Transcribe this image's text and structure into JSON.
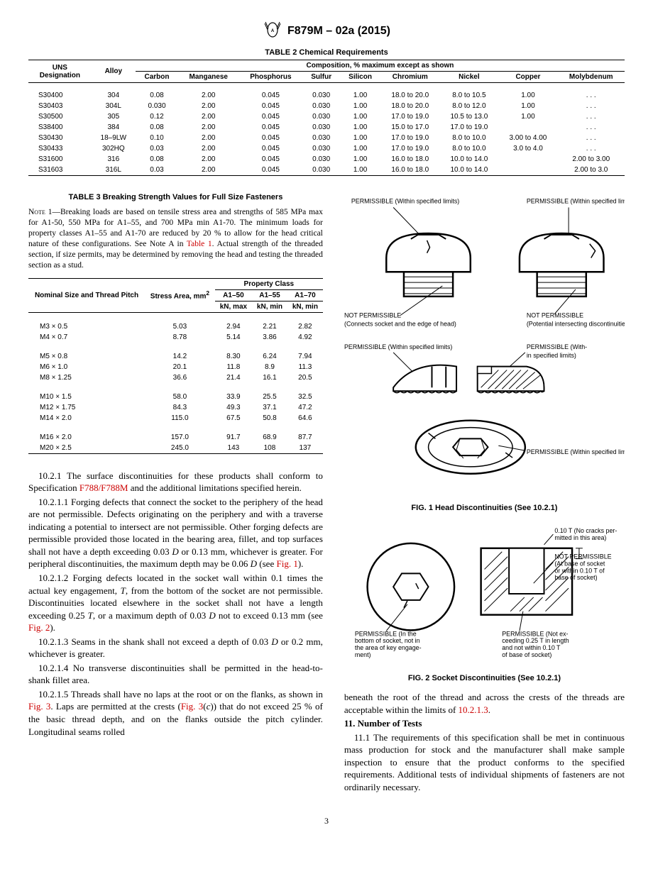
{
  "header": {
    "title": "F879M – 02a (2015)"
  },
  "page_number": "3",
  "table2": {
    "title": "TABLE 2 Chemical Requirements",
    "header_group": "Composition, % maximum except as shown",
    "columns": [
      "UNS Designation",
      "Alloy",
      "Carbon",
      "Manganese",
      "Phosphorus",
      "Sulfur",
      "Silicon",
      "Chromium",
      "Nickel",
      "Copper",
      "Molybdenum"
    ],
    "rows": [
      [
        "S30400",
        "304",
        "0.08",
        "2.00",
        "0.045",
        "0.030",
        "1.00",
        "18.0 to 20.0",
        "8.0 to 10.5",
        "1.00",
        ". . ."
      ],
      [
        "S30403",
        "304L",
        "0.030",
        "2.00",
        "0.045",
        "0.030",
        "1.00",
        "18.0 to 20.0",
        "8.0 to 12.0",
        "1.00",
        ". . ."
      ],
      [
        "S30500",
        "305",
        "0.12",
        "2.00",
        "0.045",
        "0.030",
        "1.00",
        "17.0 to 19.0",
        "10.5 to 13.0",
        "1.00",
        ". . ."
      ],
      [
        "S38400",
        "384",
        "0.08",
        "2.00",
        "0.045",
        "0.030",
        "1.00",
        "15.0 to 17.0",
        "17.0 to 19.0",
        "",
        ". . ."
      ],
      [
        "S30430",
        "18–9LW",
        "0.10",
        "2.00",
        "0.045",
        "0.030",
        "1.00",
        "17.0 to 19.0",
        "8.0 to 10.0",
        "3.00 to 4.00",
        ". . ."
      ],
      [
        "S30433",
        "302HQ",
        "0.03",
        "2.00",
        "0.045",
        "0.030",
        "1.00",
        "17.0 to 19.0",
        "8.0 to 10.0",
        "3.0 to 4.0",
        ". . ."
      ],
      [
        "S31600",
        "316",
        "0.08",
        "2.00",
        "0.045",
        "0.030",
        "1.00",
        "16.0 to 18.0",
        "10.0 to 14.0",
        "",
        "2.00 to 3.00"
      ],
      [
        "S31603",
        "316L",
        "0.03",
        "2.00",
        "0.045",
        "0.030",
        "1.00",
        "16.0 to 18.0",
        "10.0 to 14.0",
        "",
        "2.00 to 3.0"
      ]
    ]
  },
  "table3": {
    "title": "TABLE 3 Breaking Strength Values for Full Size Fasteners",
    "note_label": "Note",
    "note_num": " 1—",
    "note_body_a": "Breaking loads are based on tensile stress area and strengths of 585 MPa max for A1-50, 550 MPa for A1–55, and 700 MPa min A1-70. The minimum loads for property classes A1–55 and A1-70 are reduced by 20 % to allow for the head critical nature of these configurations. See Note A in ",
    "note_link": "Table 1",
    "note_body_b": ". Actual strength of the threaded section, if size permits, may be determined by removing the head and testing the threaded section as a stud.",
    "hdr_nominal": "Nominal Size and Thread Pitch",
    "hdr_stress": "Stress Area, mm",
    "hdr_stress_sup": "2",
    "hdr_property": "Property Class",
    "hdr_a150": "A1–50",
    "hdr_a155": "A1–55",
    "hdr_a170": "A1–70",
    "hdr_kn_max": "kN, max",
    "hdr_kn_min1": "kN, min",
    "hdr_kn_min2": "kN, min",
    "groups": [
      [
        [
          "M3 × 0.5",
          "5.03",
          "2.94",
          "2.21",
          "2.82"
        ],
        [
          "M4 × 0.7",
          "8.78",
          "5.14",
          "3.86",
          "4.92"
        ]
      ],
      [
        [
          "M5 × 0.8",
          "14.2",
          "8.30",
          "6.24",
          "7.94"
        ],
        [
          "M6 × 1.0",
          "20.1",
          "11.8",
          "8.9",
          "11.3"
        ],
        [
          "M8 × 1.25",
          "36.6",
          "21.4",
          "16.1",
          "20.5"
        ]
      ],
      [
        [
          "M10 × 1.5",
          "58.0",
          "33.9",
          "25.5",
          "32.5"
        ],
        [
          "M12 × 1.75",
          "84.3",
          "49.3",
          "37.1",
          "47.2"
        ],
        [
          "M14 × 2.0",
          "115.0",
          "67.5",
          "50.8",
          "64.6"
        ]
      ],
      [
        [
          "M16 × 2.0",
          "157.0",
          "91.7",
          "68.9",
          "87.7"
        ],
        [
          "M20 × 2.5",
          "245.0",
          "143",
          "108",
          "137"
        ]
      ]
    ]
  },
  "body_left": {
    "p1a": "10.2.1 The surface discontinuities for these products shall conform to Specification ",
    "p1_link": "F788/F788M",
    "p1b": " and the additional limitations specified herein.",
    "p2a": "10.2.1.1 Forging defects that connect the socket to the periphery of the head are not permissible. Defects originating on the periphery and with a traverse indicating a potential to intersect are not permissible. Other forging defects are permissible provided those located in the bearing area, fillet, and top surfaces shall not have a depth exceeding 0.03 ",
    "p2_D": "D",
    "p2b": " or 0.13 mm, whichever is greater. For peripheral discontinuities, the maximum depth may be 0.06 ",
    "p2c": " (see ",
    "p2_link": "Fig. 1",
    "p2d": ").",
    "p3a": "10.2.1.2 Forging defects located in the socket wall within 0.1 times the actual key engagement, ",
    "p3_T": "T",
    "p3b": ", from the bottom of the socket are not permissible. Discontinuities located elsewhere in the socket shall not have a length exceeding 0.25 ",
    "p3c": ", or a maximum depth of 0.03 ",
    "p3d": " not to exceed 0.13 mm (see ",
    "p3_link": "Fig. 2",
    "p3e": ").",
    "p4a": "10.2.1.3 Seams in the shank shall not exceed a depth of 0.03 ",
    "p4b": " or 0.2 mm, whichever is greater.",
    "p5": "10.2.1.4 No transverse discontinuities shall be permitted in the head-to-shank fillet area.",
    "p6a": "10.2.1.5 Threads shall have no laps at the root or on the flanks, as shown in ",
    "p6_link1": "Fig. 3",
    "p6b": ". Laps are permitted at the crests (",
    "p6_link2": "Fig. 3",
    "p6c": "(",
    "p6_ci": "c",
    "p6d": ")) that do not exceed 25 % of the basic thread depth, and on the flanks outside the pitch cylinder. Longitudinal seams rolled"
  },
  "body_right": {
    "p_cont_a": "beneath the root of the thread and across the crests of the threads are acceptable within the limits of ",
    "p_cont_link": "10.2.1.3",
    "p_cont_b": ".",
    "section11_title": "11. Number of Tests",
    "p11": "11.1 The requirements of this specification shall be met in continuous mass production for stock and the manufacturer shall make sample inspection to ensure that the product conforms to the specified requirements. Additional tests of individual shipments of fasteners are not ordinarily necessary."
  },
  "fig1": {
    "caption": "FIG. 1  Head Discontinuities (See 10.2.1)",
    "lbl_perm1": "PERMISSIBLE (Within specified limits)",
    "lbl_perm2": "PERMISSIBLE (Within specified limits)",
    "lbl_notperm1a": "NOT PERMISSIBLE",
    "lbl_notperm1b": "(Connects socket and the edge of head)",
    "lbl_notperm2a": "NOT PERMISSIBLE",
    "lbl_notperm2b": "(Potential intersecting discontinuities)",
    "lbl_perm3": "PERMISSIBLE (Within specified limits)",
    "lbl_perm4a": "PERMISSIBLE (With-",
    "lbl_perm4b": "in specified limits)",
    "lbl_perm5": "PERMISSIBLE (Within specified limits)"
  },
  "fig2": {
    "caption": "FIG. 2  Socket Discontinuities (See 10.2.1)",
    "lbl_top_a": "0.10 T (No cracks per-",
    "lbl_top_b": "mitted in this area)",
    "lbl_np_a": "NOT PERMISSIBLE",
    "lbl_np_b": "(At base of socket",
    "lbl_np_c": "or within 0.10 T of",
    "lbl_np_d": "base of socket)",
    "lbl_bl_a": "PERMISSIBLE (In the",
    "lbl_bl_b": "bottom of socket, not in",
    "lbl_bl_c": "the area of key engage-",
    "lbl_bl_d": "ment)",
    "lbl_br_a": "PERMISSIBLE (Not ex-",
    "lbl_br_b": "ceeding 0.25 T in length",
    "lbl_br_c": "and not within 0.10 T",
    "lbl_br_d": "of base of socket)"
  }
}
